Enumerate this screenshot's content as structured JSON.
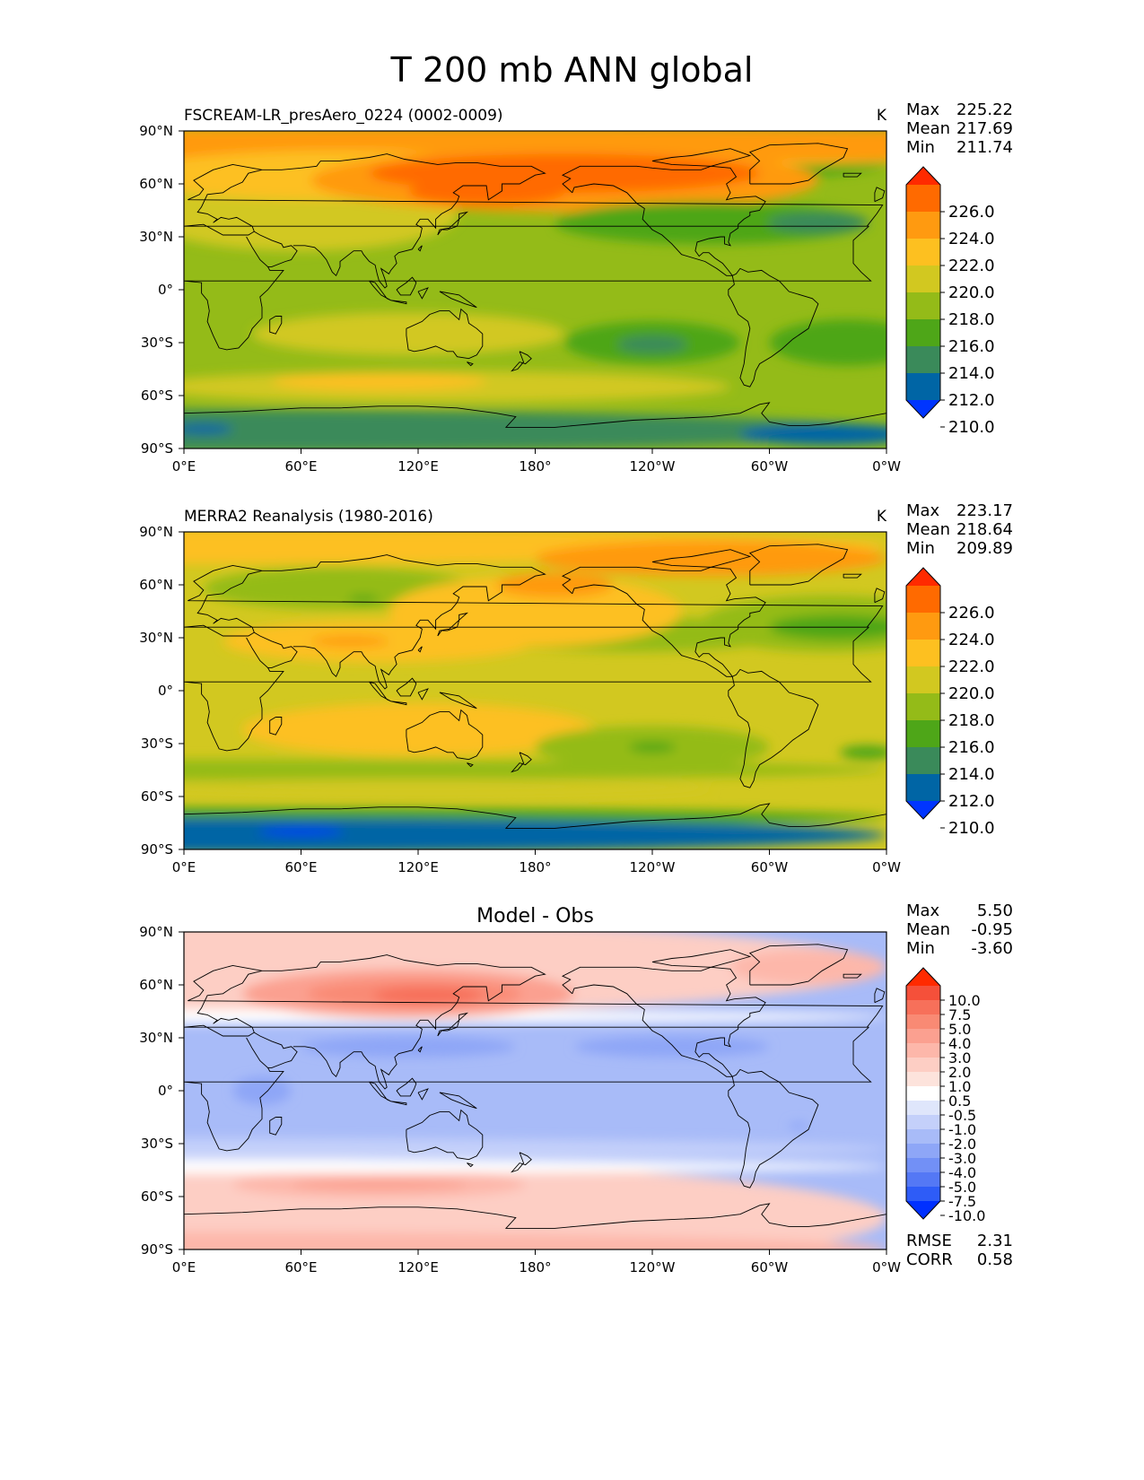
{
  "figure": {
    "title": "T 200 mb ANN global"
  },
  "axes": {
    "x_ticks": [
      "0°E",
      "60°E",
      "120°E",
      "180°",
      "120°W",
      "60°W",
      "0°W"
    ],
    "y_ticks": [
      "90°N",
      "60°N",
      "30°N",
      "0°",
      "30°S",
      "60°S",
      "90°S"
    ]
  },
  "panels": [
    {
      "title_left": "FSCREAM-LR_presAero_0224 (0002-0009)",
      "title_center": "",
      "units": "K",
      "stats": [
        {
          "label": "Max",
          "value": "225.22"
        },
        {
          "label": "Mean",
          "value": "217.69"
        },
        {
          "label": "Min",
          "value": "211.74"
        }
      ],
      "colorbar": {
        "ticks": [
          "226.0",
          "224.0",
          "222.0",
          "220.0",
          "218.0",
          "216.0",
          "214.0",
          "212.0",
          "210.0"
        ],
        "colors": [
          "#ff2a00",
          "#ff6a00",
          "#ff9a10",
          "#fdc020",
          "#d2c820",
          "#94bb18",
          "#4ea618",
          "#3a8a5a",
          "#0065a5",
          "#0035ff"
        ]
      },
      "footer": []
    },
    {
      "title_left": "MERRA2 Reanalysis (1980-2016)",
      "title_center": "",
      "units": "K",
      "stats": [
        {
          "label": "Max",
          "value": "223.17"
        },
        {
          "label": "Mean",
          "value": "218.64"
        },
        {
          "label": "Min",
          "value": "209.89"
        }
      ],
      "colorbar": {
        "ticks": [
          "226.0",
          "224.0",
          "222.0",
          "220.0",
          "218.0",
          "216.0",
          "214.0",
          "212.0",
          "210.0"
        ],
        "colors": [
          "#ff2a00",
          "#ff6a00",
          "#ff9a10",
          "#fdc020",
          "#d2c820",
          "#94bb18",
          "#4ea618",
          "#3a8a5a",
          "#0065a5",
          "#0035ff"
        ]
      },
      "footer": []
    },
    {
      "title_left": "",
      "title_center": "Model - Obs",
      "units": "",
      "stats": [
        {
          "label": "Max",
          "value": "5.50"
        },
        {
          "label": "Mean",
          "value": "-0.95"
        },
        {
          "label": "Min",
          "value": "-3.60"
        }
      ],
      "colorbar": {
        "ticks": [
          "10.0",
          "7.5",
          "5.0",
          "4.0",
          "3.0",
          "2.0",
          "1.0",
          "0.5",
          "-0.5",
          "-1.0",
          "-2.0",
          "-3.0",
          "-4.0",
          "-5.0",
          "-7.5",
          "-10.0"
        ],
        "colors": [
          "#ff2a00",
          "#f5503a",
          "#f7705a",
          "#f98a74",
          "#fba090",
          "#fdb7aa",
          "#fdcec4",
          "#fde3dc",
          "#ffffff",
          "#dfe6fb",
          "#c4d0fa",
          "#a8bbf8",
          "#8ea6f7",
          "#7290f6",
          "#5478f5",
          "#2e5cf7",
          "#0030ff"
        ]
      },
      "footer": [
        {
          "label": "RMSE",
          "value": "2.31"
        },
        {
          "label": "CORR",
          "value": "0.58"
        }
      ]
    }
  ],
  "map_fields": [
    {
      "background": "#94bb18",
      "features": [
        {
          "color": "#4ea618",
          "lon": 0,
          "lat": 72,
          "rx": 360,
          "ry": 18
        },
        {
          "color": "#3a8a5a",
          "lon": 0,
          "lat": -80,
          "rx": 360,
          "ry": 12
        },
        {
          "color": "#fdc020",
          "lon": 90,
          "lat": 80,
          "rx": 360,
          "ry": 12
        },
        {
          "color": "#ff9a10",
          "lon": 180,
          "lat": 82,
          "rx": 360,
          "ry": 10
        },
        {
          "color": "#d2c820",
          "lon": 60,
          "lat": 42,
          "rx": 80,
          "ry": 20
        },
        {
          "color": "#fdc020",
          "lon": 80,
          "lat": 65,
          "rx": 110,
          "ry": 14
        },
        {
          "color": "#ff9a10",
          "lon": 195,
          "lat": 62,
          "rx": 130,
          "ry": 18
        },
        {
          "color": "#ff6a00",
          "lon": 195,
          "lat": 66,
          "rx": 100,
          "ry": 11
        },
        {
          "color": "#ff6a00",
          "lon": 155,
          "lat": 55,
          "rx": 40,
          "ry": 7
        },
        {
          "color": "#4ea618",
          "lon": 270,
          "lat": 38,
          "rx": 80,
          "ry": 12
        },
        {
          "color": "#3a8a5a",
          "lon": 325,
          "lat": 38,
          "rx": 26,
          "ry": 6
        },
        {
          "color": "#d2c820",
          "lon": 115,
          "lat": -25,
          "rx": 80,
          "ry": 12
        },
        {
          "color": "#d2c820",
          "lon": 130,
          "lat": -55,
          "rx": 150,
          "ry": 9
        },
        {
          "color": "#fdc020",
          "lon": 100,
          "lat": -52,
          "rx": 55,
          "ry": 5
        },
        {
          "color": "#4ea618",
          "lon": 240,
          "lat": -30,
          "rx": 45,
          "ry": 12
        },
        {
          "color": "#3a8a5a",
          "lon": 240,
          "lat": -31,
          "rx": 18,
          "ry": 5
        },
        {
          "color": "#4ea618",
          "lon": 340,
          "lat": -30,
          "rx": 40,
          "ry": 13
        },
        {
          "color": "#0065a5",
          "lon": 330,
          "lat": -82,
          "rx": 45,
          "ry": 6
        },
        {
          "color": "#0065a5",
          "lon": 10,
          "lat": -79,
          "rx": 15,
          "ry": 3
        }
      ]
    },
    {
      "background": "#d2c820",
      "features": [
        {
          "color": "#4ea618",
          "lon": 0,
          "lat": -72,
          "rx": 360,
          "ry": 6
        },
        {
          "color": "#0065a5",
          "lon": 0,
          "lat": -82,
          "rx": 360,
          "ry": 10
        },
        {
          "color": "#0035ff",
          "lon": 60,
          "lat": -80,
          "rx": 22,
          "ry": 2
        },
        {
          "color": "#94bb18",
          "lon": 0,
          "lat": -45,
          "rx": 360,
          "ry": 6
        },
        {
          "color": "#d2c820",
          "lon": 120,
          "lat": -55,
          "rx": 150,
          "ry": 5
        },
        {
          "color": "#fdc020",
          "lon": 120,
          "lat": -22,
          "rx": 90,
          "ry": 15
        },
        {
          "color": "#fdc020",
          "lon": 100,
          "lat": 28,
          "rx": 80,
          "ry": 12
        },
        {
          "color": "#ff9a10",
          "lon": 85,
          "lat": 28,
          "rx": 20,
          "ry": 3
        },
        {
          "color": "#fdc020",
          "lon": 0,
          "lat": 82,
          "rx": 360,
          "ry": 10
        },
        {
          "color": "#94bb18",
          "lon": 80,
          "lat": 58,
          "rx": 70,
          "ry": 12
        },
        {
          "color": "#4ea618",
          "lon": 92,
          "lat": 52,
          "rx": 8,
          "ry": 2
        },
        {
          "color": "#94bb18",
          "lon": 230,
          "lat": 32,
          "rx": 80,
          "ry": 10
        },
        {
          "color": "#fdc020",
          "lon": 180,
          "lat": 45,
          "rx": 75,
          "ry": 20
        },
        {
          "color": "#ff9a10",
          "lon": 190,
          "lat": 60,
          "rx": 30,
          "ry": 7
        },
        {
          "color": "#ff9a10",
          "lon": 270,
          "lat": 75,
          "rx": 90,
          "ry": 10
        },
        {
          "color": "#94bb18",
          "lon": 330,
          "lat": 38,
          "rx": 65,
          "ry": 16
        },
        {
          "color": "#4ea618",
          "lon": 335,
          "lat": 36,
          "rx": 35,
          "ry": 7
        },
        {
          "color": "#94bb18",
          "lon": 240,
          "lat": -32,
          "rx": 60,
          "ry": 12
        },
        {
          "color": "#4ea618",
          "lon": 240,
          "lat": -32,
          "rx": 12,
          "ry": 3
        },
        {
          "color": "#4ea618",
          "lon": 350,
          "lat": -35,
          "rx": 14,
          "ry": 4
        }
      ]
    },
    {
      "background": "#a8bbf8",
      "features": [
        {
          "color": "#fdcec4",
          "lon": 0,
          "lat": -72,
          "rx": 360,
          "ry": 34
        },
        {
          "color": "#fdb7aa",
          "lon": 0,
          "lat": -90,
          "rx": 360,
          "ry": 10
        },
        {
          "color": "#fdb7aa",
          "lon": 100,
          "lat": -53,
          "rx": 75,
          "ry": 8
        },
        {
          "color": "#fba090",
          "lon": 100,
          "lat": -53,
          "rx": 45,
          "ry": 3
        },
        {
          "color": "#ffffff",
          "lon": 0,
          "lat": -43,
          "rx": 360,
          "ry": 4
        },
        {
          "color": "#c4d0fa",
          "lon": 0,
          "lat": -33,
          "rx": 360,
          "ry": 6
        },
        {
          "color": "#fdcec4",
          "lon": 0,
          "lat": 70,
          "rx": 360,
          "ry": 28
        },
        {
          "color": "#ffffff",
          "lon": 0,
          "lat": 42,
          "rx": 360,
          "ry": 4
        },
        {
          "color": "#fba090",
          "lon": 115,
          "lat": 55,
          "rx": 85,
          "ry": 14
        },
        {
          "color": "#f98a74",
          "lon": 118,
          "lat": 55,
          "rx": 55,
          "ry": 8
        },
        {
          "color": "#f7705a",
          "lon": 125,
          "lat": 54,
          "rx": 28,
          "ry": 5
        },
        {
          "color": "#fdb7aa",
          "lon": 320,
          "lat": 70,
          "rx": 40,
          "ry": 10
        },
        {
          "color": "#8ea6f7",
          "lon": 115,
          "lat": 25,
          "rx": 55,
          "ry": 6
        },
        {
          "color": "#8ea6f7",
          "lon": 250,
          "lat": 25,
          "rx": 50,
          "ry": 6
        },
        {
          "color": "#8ea6f7",
          "lon": 40,
          "lat": 0,
          "rx": 15,
          "ry": 8
        },
        {
          "color": "#8ea6f7",
          "lon": 315,
          "lat": -20,
          "rx": 5,
          "ry": 2
        }
      ]
    }
  ]
}
